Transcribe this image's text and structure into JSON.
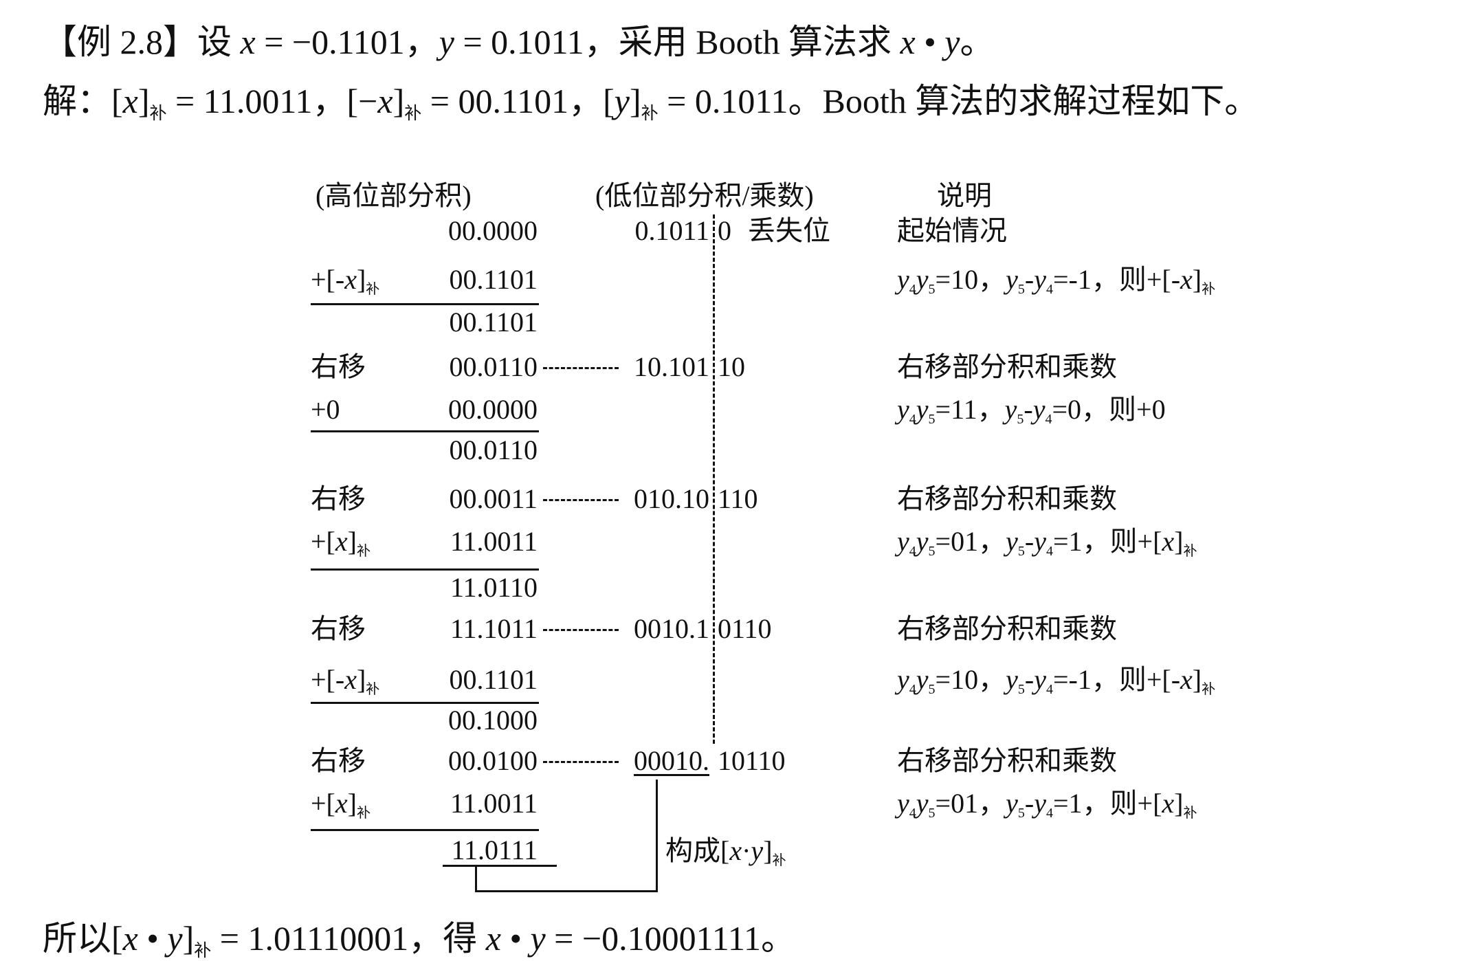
{
  "title_line": [
    {
      "t": "【例 2.8】设 "
    },
    {
      "t": "x",
      "s": "i"
    },
    {
      "t": " = −0.1101，"
    },
    {
      "t": "y",
      "s": "i"
    },
    {
      "t": " = 0.1011，采用 Booth 算法求 "
    },
    {
      "t": "x",
      "s": "i"
    },
    {
      "t": " • "
    },
    {
      "t": "y",
      "s": "i"
    },
    {
      "t": "。"
    }
  ],
  "solution_line": [
    {
      "t": "解：["
    },
    {
      "t": "x",
      "s": "i"
    },
    {
      "t": "]"
    },
    {
      "t": "补",
      "s": "sub"
    },
    {
      "t": " = 11.0011，[−"
    },
    {
      "t": "x",
      "s": "i"
    },
    {
      "t": "]"
    },
    {
      "t": "补",
      "s": "sub"
    },
    {
      "t": " = 00.1101，["
    },
    {
      "t": "y",
      "s": "i"
    },
    {
      "t": "]"
    },
    {
      "t": "补",
      "s": "sub"
    },
    {
      "t": " = 0.1011。Booth 算法的求解过程如下。"
    }
  ],
  "headers": {
    "high": "(高位部分积)",
    "low": "(低位部分积/乘数)",
    "desc": "说明"
  },
  "rows": [
    {
      "label": [],
      "high": "00.0000",
      "low_left": "0.1011",
      "low_right": "0",
      "note": "丢失位",
      "desc": [
        {
          "t": "起始情况"
        }
      ]
    },
    {
      "label": [
        {
          "t": "+[-"
        },
        {
          "t": "x",
          "s": "i"
        },
        {
          "t": "]"
        },
        {
          "t": "补",
          "s": "sub"
        }
      ],
      "high": "00.1101",
      "underline": true,
      "desc": [
        {
          "t": "y",
          "s": "i"
        },
        {
          "t": "4",
          "s": "sub"
        },
        {
          "t": "y",
          "s": "i"
        },
        {
          "t": "5",
          "s": "sub"
        },
        {
          "t": "=10，"
        },
        {
          "t": "y",
          "s": "i"
        },
        {
          "t": "5",
          "s": "sub"
        },
        {
          "t": "-"
        },
        {
          "t": "y",
          "s": "i"
        },
        {
          "t": "4",
          "s": "sub"
        },
        {
          "t": "=-1，则+[-"
        },
        {
          "t": "x",
          "s": "i"
        },
        {
          "t": "]"
        },
        {
          "t": "补",
          "s": "sub"
        }
      ]
    },
    {
      "label": [],
      "high": "00.1101",
      "desc": []
    },
    {
      "label": [
        {
          "t": "右移"
        }
      ],
      "high": "00.0110",
      "low_left": "10.101",
      "low_right": "10",
      "connector": true,
      "desc": [
        {
          "t": "右移部分积和乘数"
        }
      ]
    },
    {
      "label": [
        {
          "t": "+0"
        }
      ],
      "high": "00.0000",
      "underline": true,
      "desc": [
        {
          "t": "y",
          "s": "i"
        },
        {
          "t": "4",
          "s": "sub"
        },
        {
          "t": "y",
          "s": "i"
        },
        {
          "t": "5",
          "s": "sub"
        },
        {
          "t": "=11，"
        },
        {
          "t": "y",
          "s": "i"
        },
        {
          "t": "5",
          "s": "sub"
        },
        {
          "t": "-"
        },
        {
          "t": "y",
          "s": "i"
        },
        {
          "t": "4",
          "s": "sub"
        },
        {
          "t": "=0，则+0"
        }
      ]
    },
    {
      "label": [],
      "high": "00.0110",
      "desc": []
    },
    {
      "label": [
        {
          "t": "右移"
        }
      ],
      "high": "00.0011",
      "low_left": "010.10",
      "low_right": "110",
      "connector": true,
      "desc": [
        {
          "t": "右移部分积和乘数"
        }
      ]
    },
    {
      "label": [
        {
          "t": "+["
        },
        {
          "t": "x",
          "s": "i"
        },
        {
          "t": "]"
        },
        {
          "t": "补",
          "s": "sub"
        }
      ],
      "high": "11.0011",
      "underline": true,
      "desc": [
        {
          "t": "y",
          "s": "i"
        },
        {
          "t": "4",
          "s": "sub"
        },
        {
          "t": "y",
          "s": "i"
        },
        {
          "t": "5",
          "s": "sub"
        },
        {
          "t": "=01，"
        },
        {
          "t": "y",
          "s": "i"
        },
        {
          "t": "5",
          "s": "sub"
        },
        {
          "t": "-"
        },
        {
          "t": "y",
          "s": "i"
        },
        {
          "t": "4",
          "s": "sub"
        },
        {
          "t": "=1，则+["
        },
        {
          "t": "x",
          "s": "i"
        },
        {
          "t": "]"
        },
        {
          "t": "补",
          "s": "sub"
        }
      ]
    },
    {
      "label": [],
      "high": "11.0110",
      "desc": []
    },
    {
      "label": [
        {
          "t": "右移"
        }
      ],
      "high": "11.1011",
      "low_left": "0010.1",
      "low_right": "0110",
      "connector": true,
      "desc": [
        {
          "t": "右移部分积和乘数"
        }
      ]
    },
    {
      "label": [
        {
          "t": "+[-"
        },
        {
          "t": "x",
          "s": "i"
        },
        {
          "t": "]"
        },
        {
          "t": "补",
          "s": "sub"
        }
      ],
      "high": "00.1101",
      "underline": true,
      "desc": [
        {
          "t": "y",
          "s": "i"
        },
        {
          "t": "4",
          "s": "sub"
        },
        {
          "t": "y",
          "s": "i"
        },
        {
          "t": "5",
          "s": "sub"
        },
        {
          "t": "=10，"
        },
        {
          "t": "y",
          "s": "i"
        },
        {
          "t": "5",
          "s": "sub"
        },
        {
          "t": "-"
        },
        {
          "t": "y",
          "s": "i"
        },
        {
          "t": "4",
          "s": "sub"
        },
        {
          "t": "=-1，则+[-"
        },
        {
          "t": "x",
          "s": "i"
        },
        {
          "t": "]"
        },
        {
          "t": "补",
          "s": "sub"
        }
      ]
    },
    {
      "label": [],
      "high": "00.1000",
      "desc": []
    },
    {
      "label": [
        {
          "t": "右移"
        }
      ],
      "high": "00.0100",
      "low_left": "00010.",
      "low_right": "10110",
      "connector": true,
      "low_underline": true,
      "desc": [
        {
          "t": "右移部分积和乘数"
        }
      ]
    },
    {
      "label": [
        {
          "t": "+["
        },
        {
          "t": "x",
          "s": "i"
        },
        {
          "t": "]"
        },
        {
          "t": "补",
          "s": "sub"
        }
      ],
      "high": "11.0011",
      "underline": true,
      "desc": [
        {
          "t": "y",
          "s": "i"
        },
        {
          "t": "4",
          "s": "sub"
        },
        {
          "t": "y",
          "s": "i"
        },
        {
          "t": "5",
          "s": "sub"
        },
        {
          "t": "=01，"
        },
        {
          "t": "y",
          "s": "i"
        },
        {
          "t": "5",
          "s": "sub"
        },
        {
          "t": "-"
        },
        {
          "t": "y",
          "s": "i"
        },
        {
          "t": "4",
          "s": "sub"
        },
        {
          "t": "=1，则+["
        },
        {
          "t": "x",
          "s": "i"
        },
        {
          "t": "]"
        },
        {
          "t": "补",
          "s": "sub"
        }
      ]
    },
    {
      "label": [],
      "high": "11.0111",
      "desc": []
    }
  ],
  "bracket_label": [
    {
      "t": "构成["
    },
    {
      "t": "x",
      "s": "i"
    },
    {
      "t": "·"
    },
    {
      "t": "y",
      "s": "i"
    },
    {
      "t": "]"
    },
    {
      "t": "补",
      "s": "sub"
    }
  ],
  "conclusion_line": [
    {
      "t": "所以["
    },
    {
      "t": "x",
      "s": "i"
    },
    {
      "t": " • "
    },
    {
      "t": "y",
      "s": "i"
    },
    {
      "t": "]"
    },
    {
      "t": "补",
      "s": "sub"
    },
    {
      "t": " = 1.01110001，得 "
    },
    {
      "t": "x",
      "s": "i"
    },
    {
      "t": " • "
    },
    {
      "t": "y",
      "s": "i"
    },
    {
      "t": " = −0.10001111。"
    }
  ]
}
